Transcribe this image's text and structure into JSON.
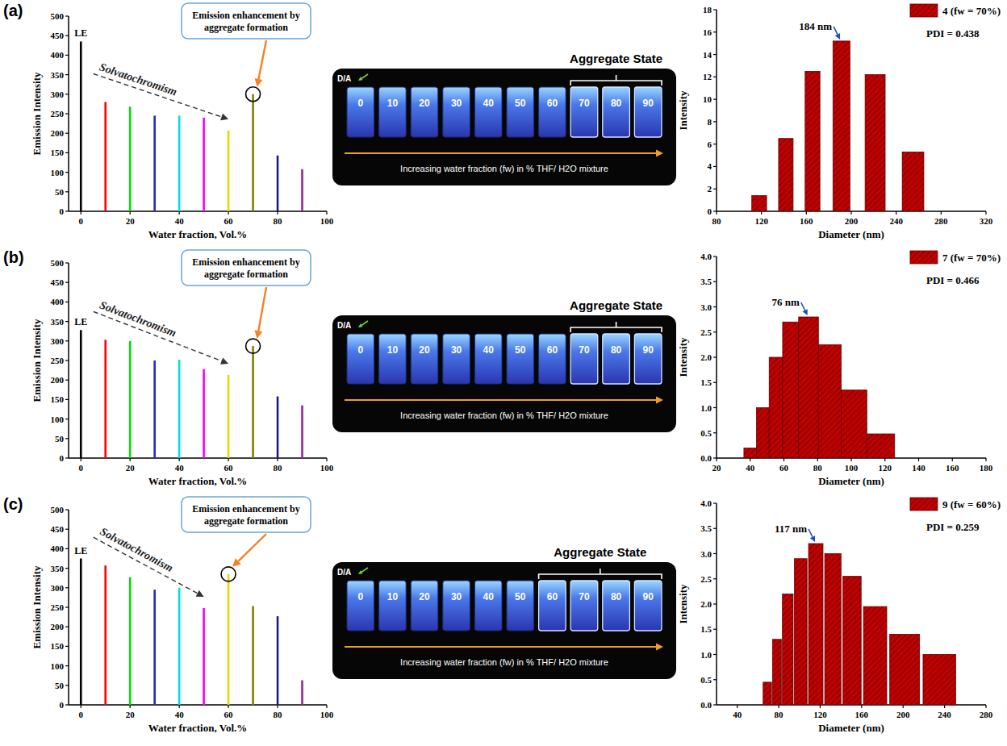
{
  "chart_data": [
    {
      "type": "stem",
      "x": [
        0,
        10,
        20,
        30,
        40,
        50,
        60,
        70,
        80,
        90
      ],
      "values": [
        435,
        280,
        268,
        245,
        245,
        240,
        207,
        300,
        143,
        108
      ],
      "colors": [
        "#000000",
        "#ff0000",
        "#00e000",
        "#2828c8",
        "#00e0e0",
        "#ff00ff",
        "#e6d800",
        "#808000",
        "#1c1c80",
        "#a020a0"
      ],
      "xlim": [
        -5,
        100
      ],
      "xticks": [
        0,
        20,
        40,
        60,
        80,
        100
      ],
      "ylim": [
        0,
        500
      ],
      "yticks": [
        0,
        50,
        100,
        150,
        200,
        250,
        300,
        350,
        400,
        450,
        500
      ],
      "x_label": "Water fraction, Vol.%",
      "y_label": "Emission Intensity",
      "first_label": "LE",
      "trend_label": "Solvatochromism",
      "callout": "Emission enhancement by aggregate formation",
      "callout_x": 70,
      "grid": false
    },
    {
      "type": "bar",
      "x": [
        118,
        142,
        165,
        190,
        220,
        255
      ],
      "series": [
        {
          "name": "4 (fw = 70%)",
          "color": "#c00000",
          "values": [
            1.4,
            6.5,
            12.5,
            15.2,
            12.2,
            5.3
          ]
        }
      ],
      "xlim": [
        80,
        320
      ],
      "xticks": [
        80,
        120,
        160,
        200,
        240,
        280,
        320
      ],
      "ylim": [
        0,
        18
      ],
      "yticks": [
        0,
        2,
        4,
        6,
        8,
        10,
        12,
        14,
        16,
        18
      ],
      "x_label": "Diameter (nm)",
      "y_label": "Intensity",
      "legend": "upper right",
      "peak_label": "184 nm",
      "peak_x": 190,
      "pdi_label": "PDI = 0.438",
      "grid": false
    },
    {
      "type": "stem",
      "x": [
        0,
        10,
        20,
        30,
        40,
        50,
        60,
        70,
        80,
        90
      ],
      "values": [
        328,
        303,
        300,
        250,
        252,
        228,
        213,
        287,
        158,
        135
      ],
      "colors": [
        "#000000",
        "#ff0000",
        "#00e000",
        "#2828c8",
        "#00e0e0",
        "#ff00ff",
        "#e6d800",
        "#808000",
        "#1c1c80",
        "#a020a0"
      ],
      "xlim": [
        -5,
        100
      ],
      "xticks": [
        0,
        20,
        40,
        60,
        80,
        100
      ],
      "ylim": [
        0,
        500
      ],
      "yticks": [
        0,
        50,
        100,
        150,
        200,
        250,
        300,
        350,
        400,
        450,
        500
      ],
      "x_label": "Water fraction, Vol.%",
      "y_label": "Emission Intensity",
      "first_label": "LE",
      "trend_label": "Solvatochromism",
      "callout": "Emission enhancement by aggregate formation",
      "callout_x": 70,
      "grid": false
    },
    {
      "type": "bar",
      "x": [
        40,
        47.5,
        55,
        63.5,
        74,
        87,
        101,
        117.5
      ],
      "series": [
        {
          "name": "7 (fw = 70%)",
          "color": "#c00000",
          "values": [
            0.2,
            1.0,
            2.0,
            2.7,
            2.8,
            2.25,
            1.35,
            0.48
          ]
        }
      ],
      "xlim": [
        20,
        180
      ],
      "xticks": [
        20,
        40,
        60,
        80,
        100,
        120,
        140,
        160,
        180
      ],
      "ylim": [
        0,
        4
      ],
      "yticks": [
        {
          "value": 0,
          "label": "0.0"
        },
        0.5,
        {
          "value": 1,
          "label": "1.0"
        },
        1.5,
        {
          "value": 2,
          "label": "2.0"
        },
        2.5,
        {
          "value": 3,
          "label": "3.0"
        },
        3.5,
        {
          "value": 4,
          "label": "4.0"
        }
      ],
      "x_label": "Diameter (nm)",
      "y_label": "Intensity",
      "legend": "upper right",
      "peak_label": "76 nm",
      "peak_x": 74,
      "pdi_label": "PDI = 0.466",
      "grid": false
    },
    {
      "type": "stem",
      "x": [
        0,
        10,
        20,
        30,
        40,
        50,
        60,
        70,
        80,
        90
      ],
      "values": [
        375,
        357,
        327,
        295,
        300,
        248,
        335,
        253,
        227,
        63
      ],
      "colors": [
        "#000000",
        "#ff0000",
        "#00e000",
        "#2828c8",
        "#00e0e0",
        "#ff00ff",
        "#e6d800",
        "#808000",
        "#1c1c80",
        "#a020a0"
      ],
      "xlim": [
        -5,
        100
      ],
      "xticks": [
        0,
        20,
        40,
        60,
        80,
        100
      ],
      "ylim": [
        0,
        500
      ],
      "yticks": [
        0,
        50,
        100,
        150,
        200,
        250,
        300,
        350,
        400,
        450,
        500
      ],
      "x_label": "Water fraction, Vol.%",
      "y_label": "Emission Intensity",
      "first_label": "LE",
      "trend_label": "Solvatochromism",
      "callout": "Emission enhancement by aggregate formation",
      "callout_x": 60,
      "grid": false
    },
    {
      "type": "bar",
      "x": [
        69,
        78,
        88,
        101,
        115,
        132,
        150,
        171,
        200,
        235
      ],
      "series": [
        {
          "name": "9 (fw = 60%)",
          "color": "#c00000",
          "values": [
            0.45,
            1.3,
            2.2,
            2.9,
            3.2,
            3.0,
            2.55,
            1.95,
            1.4,
            1.0
          ]
        }
      ],
      "xlim": [
        20,
        280
      ],
      "xticks": [
        40,
        80,
        120,
        160,
        200,
        240,
        280
      ],
      "ylim": [
        0,
        4
      ],
      "yticks": [
        {
          "value": 0,
          "label": "0.0"
        },
        0.5,
        {
          "value": 1,
          "label": "1.0"
        },
        1.5,
        {
          "value": 2,
          "label": "2.0"
        },
        2.5,
        {
          "value": 3,
          "label": "3.0"
        },
        3.5,
        {
          "value": 4,
          "label": "4.0"
        }
      ],
      "x_label": "Diameter (nm)",
      "y_label": "Intensity",
      "legend": "upper right",
      "peak_label": "117 nm",
      "peak_x": 115,
      "pdi_label": "PDI = 0.259",
      "grid": false
    }
  ],
  "panels": [
    {
      "letter": "(a)",
      "photo": {
        "donor_acceptor": "D/A",
        "vials": [
          0,
          10,
          20,
          30,
          40,
          50,
          60,
          70,
          80,
          90
        ],
        "aggregate_label": "Aggregate State",
        "aggregate_vials": [
          70,
          80,
          90
        ],
        "caption": "Increasing water fraction (fw) in % THF/ H2O mixture"
      }
    },
    {
      "letter": "(b)",
      "photo": {
        "donor_acceptor": "D/A",
        "vials": [
          0,
          10,
          20,
          30,
          40,
          50,
          60,
          70,
          80,
          90
        ],
        "aggregate_label": "Aggregate State",
        "aggregate_vials": [
          70,
          80,
          90
        ],
        "caption": "Increasing water fraction (fw) in % THF/ H2O mixture"
      }
    },
    {
      "letter": "(c)",
      "photo": {
        "donor_acceptor": "D/A",
        "vials": [
          0,
          10,
          20,
          30,
          40,
          50,
          60,
          70,
          80,
          90
        ],
        "aggregate_label": "Aggregate State",
        "aggregate_vials": [
          60,
          70,
          80,
          90
        ],
        "caption": "Increasing water fraction (fw) in % THF/ H2O mixture"
      }
    }
  ]
}
